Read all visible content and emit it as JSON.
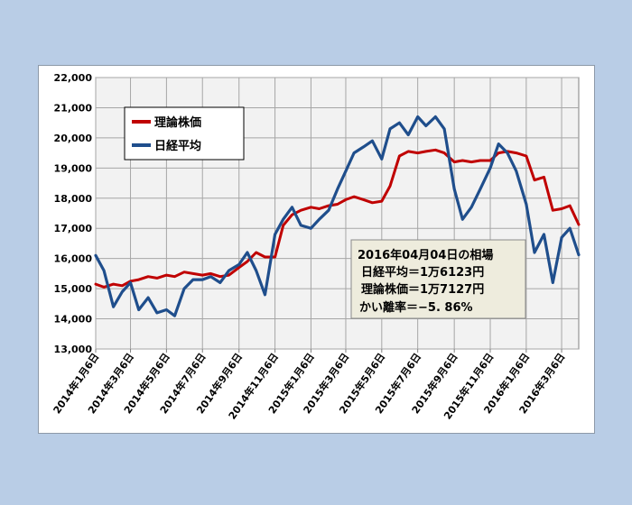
{
  "chart_data": {
    "type": "line",
    "title": "",
    "xlabel": "",
    "ylabel": "",
    "ylim": [
      13000,
      22000
    ],
    "yticks": [
      "13,000",
      "14,000",
      "15,000",
      "16,000",
      "17,000",
      "18,000",
      "19,000",
      "20,000",
      "21,000",
      "22,000"
    ],
    "xticks": [
      "2014年1月6日",
      "2014年3月6日",
      "2014年5月6日",
      "2014年7月6日",
      "2014年9月6日",
      "2014年11月6日",
      "2015年1月6日",
      "2015年3月6日",
      "2015年5月6日",
      "2015年7月6日",
      "2015年9月6日",
      "2015年11月6日",
      "2016年1月6日",
      "2016年3月6日"
    ],
    "xtick_dates": [
      "2014-01-06",
      "2014-03-06",
      "2014-05-06",
      "2014-07-06",
      "2014-09-06",
      "2014-11-06",
      "2015-01-06",
      "2015-03-06",
      "2015-05-06",
      "2015-07-06",
      "2015-09-06",
      "2015-11-06",
      "2016-01-06",
      "2016-03-06"
    ],
    "x_range": [
      "2014-01-06",
      "2016-04-04"
    ],
    "grid": true,
    "legend_position": "top-left",
    "series": [
      {
        "name": "理論株価",
        "color": "#c00000",
        "points": [
          [
            "2014-01-06",
            15150
          ],
          [
            "2014-01-20",
            15050
          ],
          [
            "2014-02-05",
            15150
          ],
          [
            "2014-02-20",
            15100
          ],
          [
            "2014-03-06",
            15250
          ],
          [
            "2014-03-20",
            15300
          ],
          [
            "2014-04-05",
            15400
          ],
          [
            "2014-04-20",
            15350
          ],
          [
            "2014-05-06",
            15450
          ],
          [
            "2014-05-20",
            15400
          ],
          [
            "2014-06-05",
            15550
          ],
          [
            "2014-06-20",
            15500
          ],
          [
            "2014-07-06",
            15450
          ],
          [
            "2014-07-20",
            15500
          ],
          [
            "2014-08-05",
            15400
          ],
          [
            "2014-08-20",
            15450
          ],
          [
            "2014-09-06",
            15700
          ],
          [
            "2014-09-20",
            15900
          ],
          [
            "2014-10-05",
            16200
          ],
          [
            "2014-10-20",
            16050
          ],
          [
            "2014-11-06",
            16050
          ],
          [
            "2014-11-20",
            17100
          ],
          [
            "2014-12-05",
            17450
          ],
          [
            "2014-12-20",
            17600
          ],
          [
            "2015-01-06",
            17700
          ],
          [
            "2015-01-20",
            17650
          ],
          [
            "2015-02-05",
            17750
          ],
          [
            "2015-02-20",
            17800
          ],
          [
            "2015-03-06",
            17950
          ],
          [
            "2015-03-20",
            18050
          ],
          [
            "2015-04-05",
            17950
          ],
          [
            "2015-04-20",
            17850
          ],
          [
            "2015-05-06",
            17900
          ],
          [
            "2015-05-20",
            18400
          ],
          [
            "2015-06-05",
            19400
          ],
          [
            "2015-06-20",
            19550
          ],
          [
            "2015-07-06",
            19500
          ],
          [
            "2015-07-20",
            19550
          ],
          [
            "2015-08-05",
            19600
          ],
          [
            "2015-08-20",
            19500
          ],
          [
            "2015-09-06",
            19200
          ],
          [
            "2015-09-20",
            19250
          ],
          [
            "2015-10-05",
            19200
          ],
          [
            "2015-10-20",
            19250
          ],
          [
            "2015-11-06",
            19250
          ],
          [
            "2015-11-20",
            19500
          ],
          [
            "2015-12-05",
            19550
          ],
          [
            "2015-12-20",
            19500
          ],
          [
            "2016-01-06",
            19400
          ],
          [
            "2016-01-20",
            18600
          ],
          [
            "2016-02-05",
            18700
          ],
          [
            "2016-02-20",
            17600
          ],
          [
            "2016-03-06",
            17650
          ],
          [
            "2016-03-20",
            17750
          ],
          [
            "2016-04-04",
            17127
          ]
        ]
      },
      {
        "name": "日経平均",
        "color": "#1f4e8c",
        "points": [
          [
            "2014-01-06",
            16100
          ],
          [
            "2014-01-20",
            15600
          ],
          [
            "2014-02-05",
            14400
          ],
          [
            "2014-02-20",
            14900
          ],
          [
            "2014-03-06",
            15200
          ],
          [
            "2014-03-20",
            14300
          ],
          [
            "2014-04-05",
            14700
          ],
          [
            "2014-04-20",
            14200
          ],
          [
            "2014-05-06",
            14300
          ],
          [
            "2014-05-20",
            14100
          ],
          [
            "2014-06-05",
            15000
          ],
          [
            "2014-06-20",
            15300
          ],
          [
            "2014-07-06",
            15300
          ],
          [
            "2014-07-20",
            15400
          ],
          [
            "2014-08-05",
            15200
          ],
          [
            "2014-08-20",
            15600
          ],
          [
            "2014-09-06",
            15800
          ],
          [
            "2014-09-20",
            16200
          ],
          [
            "2014-10-05",
            15600
          ],
          [
            "2014-10-20",
            14800
          ],
          [
            "2014-11-06",
            16800
          ],
          [
            "2014-11-20",
            17300
          ],
          [
            "2014-12-05",
            17700
          ],
          [
            "2014-12-20",
            17100
          ],
          [
            "2015-01-06",
            17000
          ],
          [
            "2015-01-20",
            17300
          ],
          [
            "2015-02-05",
            17600
          ],
          [
            "2015-02-20",
            18300
          ],
          [
            "2015-03-06",
            18900
          ],
          [
            "2015-03-20",
            19500
          ],
          [
            "2015-04-05",
            19700
          ],
          [
            "2015-04-20",
            19900
          ],
          [
            "2015-05-06",
            19300
          ],
          [
            "2015-05-20",
            20300
          ],
          [
            "2015-06-05",
            20500
          ],
          [
            "2015-06-20",
            20100
          ],
          [
            "2015-07-06",
            20700
          ],
          [
            "2015-07-20",
            20400
          ],
          [
            "2015-08-05",
            20700
          ],
          [
            "2015-08-20",
            20300
          ],
          [
            "2015-09-06",
            18300
          ],
          [
            "2015-09-20",
            17300
          ],
          [
            "2015-10-05",
            17700
          ],
          [
            "2015-10-20",
            18300
          ],
          [
            "2015-11-06",
            19000
          ],
          [
            "2015-11-20",
            19800
          ],
          [
            "2015-12-05",
            19500
          ],
          [
            "2015-12-20",
            18900
          ],
          [
            "2016-01-06",
            17800
          ],
          [
            "2016-01-20",
            16200
          ],
          [
            "2016-02-05",
            16800
          ],
          [
            "2016-02-20",
            15200
          ],
          [
            "2016-03-06",
            16700
          ],
          [
            "2016-03-20",
            17000
          ],
          [
            "2016-04-04",
            16123
          ]
        ]
      }
    ],
    "annotation": {
      "lines": [
        "2016年04月04日の相場",
        "日経平均＝1万6123円",
        "理論株価＝1万7127円",
        "かい離率＝−5. 86%"
      ]
    }
  }
}
